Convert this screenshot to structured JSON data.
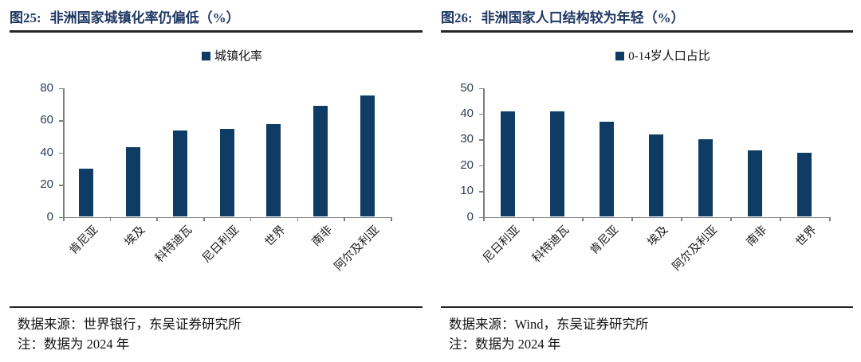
{
  "colors": {
    "bar": "#0E3C64",
    "title": "#1F3864",
    "axis": "#7f7f7f",
    "rule": "#262626"
  },
  "chart_data": [
    {
      "type": "bar",
      "title_prefix": "图25:",
      "title": "非洲国家城镇化率仍偏低（%）",
      "legend": "城镇化率",
      "categories": [
        "肯尼亚",
        "埃及",
        "科特迪瓦",
        "尼日利亚",
        "世界",
        "南非",
        "阿尔及利亚"
      ],
      "values": [
        29.9,
        43.1,
        53.7,
        54.6,
        57.3,
        68.8,
        75.3
      ],
      "ylim": [
        0,
        80
      ],
      "yticks": [
        0,
        20,
        40,
        60,
        80
      ],
      "grid": false,
      "legend_position": "top-center",
      "source": "数据来源：世界银行，东吴证券研究所",
      "note": "注：数据为 2024 年"
    },
    {
      "type": "bar",
      "title_prefix": "图26:",
      "title": "非洲国家人口结构较为年轻（%）",
      "legend": "0-14岁人口占比",
      "categories": [
        "尼日利亚",
        "科特迪瓦",
        "肯尼亚",
        "埃及",
        "阿尔及利亚",
        "南非",
        "世界"
      ],
      "values": [
        41.0,
        40.8,
        36.8,
        32.0,
        30.2,
        25.8,
        24.7
      ],
      "ylim": [
        0,
        50
      ],
      "yticks": [
        0,
        10,
        20,
        30,
        40,
        50
      ],
      "grid": false,
      "legend_position": "top-center",
      "source": "数据来源：Wind，东吴证券研究所",
      "note": "注：数据为 2024 年"
    }
  ]
}
